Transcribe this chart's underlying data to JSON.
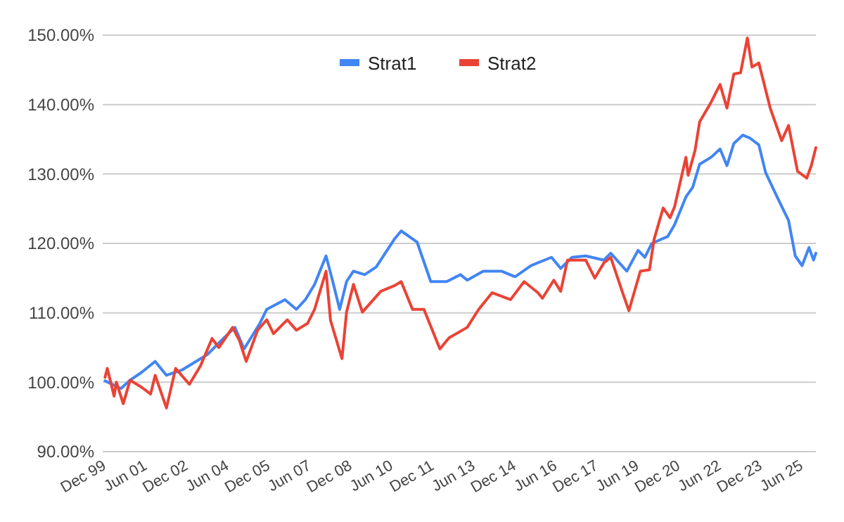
{
  "chart_data": {
    "type": "line",
    "legend": "top",
    "grid": "y",
    "line_style": "solid",
    "marker": "none",
    "xlim": [
      "1999-12",
      "2026-01"
    ],
    "xticks": [
      {
        "value": "1999-12",
        "label": "Dec 99"
      },
      {
        "value": "2001-06",
        "label": "Jun 01"
      },
      {
        "value": "2002-12",
        "label": "Dec 02"
      },
      {
        "value": "2004-06",
        "label": "Jun 04"
      },
      {
        "value": "2005-12",
        "label": "Dec 05"
      },
      {
        "value": "2007-06",
        "label": "Jun 07"
      },
      {
        "value": "2008-12",
        "label": "Dec 08"
      },
      {
        "value": "2010-06",
        "label": "Jun 10"
      },
      {
        "value": "2011-12",
        "label": "Dec 11"
      },
      {
        "value": "2013-06",
        "label": "Jun 13"
      },
      {
        "value": "2014-12",
        "label": "Dec 14"
      },
      {
        "value": "2016-06",
        "label": "Jun 16"
      },
      {
        "value": "2017-12",
        "label": "Dec 17"
      },
      {
        "value": "2019-06",
        "label": "Jun 19"
      },
      {
        "value": "2020-12",
        "label": "Dec 20"
      },
      {
        "value": "2022-06",
        "label": "Jun 22"
      },
      {
        "value": "2023-12",
        "label": "Dec 23"
      },
      {
        "value": "2025-06",
        "label": "Jun 25"
      }
    ],
    "ylim": [
      90,
      150
    ],
    "yticks": [
      {
        "value": 90,
        "label": "90.00%"
      },
      {
        "value": 100,
        "label": "100.00%"
      },
      {
        "value": 110,
        "label": "110.00%"
      },
      {
        "value": 120,
        "label": "120.00%"
      },
      {
        "value": 130,
        "label": "130.00%"
      },
      {
        "value": 140,
        "label": "140.00%"
      },
      {
        "value": 150,
        "label": "150.00%"
      }
    ],
    "series": [
      {
        "name": "Strat1",
        "color": "#4285f4",
        "x": [
          "2000-01",
          "2000-08",
          "2000-12",
          "2001-05",
          "2001-11",
          "2002-04",
          "2002-11",
          "2003-05",
          "2003-10",
          "2004-04",
          "2004-10",
          "2005-02",
          "2005-09",
          "2005-12",
          "2006-08",
          "2007-01",
          "2007-05",
          "2007-09",
          "2008-02",
          "2008-05",
          "2008-08",
          "2008-11",
          "2009-02",
          "2009-07",
          "2009-12",
          "2010-08",
          "2010-11",
          "2011-06",
          "2011-12",
          "2012-07",
          "2013-01",
          "2013-04",
          "2013-11",
          "2014-07",
          "2015-01",
          "2015-08",
          "2016-05",
          "2016-09",
          "2017-02",
          "2017-08",
          "2018-04",
          "2018-07",
          "2019-02",
          "2019-07",
          "2019-10",
          "2020-01",
          "2020-08",
          "2020-11",
          "2021-04",
          "2021-07",
          "2021-10",
          "2022-03",
          "2022-07",
          "2022-10",
          "2023-01",
          "2023-05",
          "2023-08",
          "2023-12",
          "2024-03",
          "2024-08",
          "2025-01",
          "2025-04",
          "2025-07",
          "2025-10",
          "2025-12",
          "2026-01"
        ],
        "values": [
          100.2,
          99.1,
          100.3,
          101.4,
          103,
          101,
          101.8,
          103,
          104,
          106,
          107.9,
          104.8,
          108.5,
          110.5,
          111.9,
          110.5,
          111.9,
          114.1,
          118.2,
          114.5,
          110.5,
          114.5,
          116,
          115.5,
          116.6,
          120.6,
          121.8,
          120.2,
          114.5,
          114.5,
          115.5,
          114.7,
          116,
          116,
          115.2,
          116.8,
          118,
          116.4,
          118,
          118.2,
          117.6,
          118.6,
          116,
          119,
          118,
          120,
          121,
          122.7,
          126.7,
          128.1,
          131.4,
          132.4,
          133.6,
          131.2,
          134.4,
          135.6,
          135.2,
          134.2,
          130.2,
          126.7,
          123.3,
          118.2,
          116.8,
          119.4,
          117.6,
          118.6
        ]
      },
      {
        "name": "Strat2",
        "color": "#ea4335",
        "x": [
          "2000-01",
          "2000-02",
          "2000-05",
          "2000-06",
          "2000-09",
          "2000-12",
          "2001-05",
          "2001-09",
          "2001-11",
          "2002-04",
          "2002-08",
          "2003-02",
          "2003-07",
          "2003-12",
          "2004-03",
          "2004-09",
          "2004-12",
          "2005-03",
          "2005-08",
          "2005-12",
          "2006-03",
          "2006-09",
          "2007-01",
          "2007-06",
          "2007-09",
          "2008-02",
          "2008-04",
          "2008-09",
          "2008-11",
          "2009-02",
          "2009-06",
          "2010-02",
          "2010-08",
          "2010-11",
          "2011-04",
          "2011-09",
          "2012-04",
          "2012-08",
          "2013-04",
          "2013-09",
          "2014-03",
          "2014-11",
          "2015-05",
          "2015-11",
          "2016-01",
          "2016-06",
          "2016-09",
          "2016-12",
          "2017-08",
          "2017-12",
          "2018-04",
          "2018-07",
          "2018-12",
          "2019-03",
          "2019-08",
          "2019-12",
          "2020-02",
          "2020-06",
          "2020-09",
          "2020-11",
          "2021-04",
          "2021-05",
          "2021-08",
          "2021-10",
          "2022-03",
          "2022-07",
          "2022-10",
          "2023-01",
          "2023-04",
          "2023-07",
          "2023-09",
          "2023-12",
          "2024-05",
          "2024-10",
          "2025-01",
          "2025-05",
          "2025-09",
          "2025-11",
          "2026-01"
        ],
        "values": [
          100.7,
          102,
          98,
          100,
          96.9,
          100.3,
          99.3,
          98.3,
          101,
          96.3,
          102,
          99.7,
          102.4,
          106.3,
          105,
          107.9,
          106,
          103,
          107.5,
          109,
          107,
          109,
          107.5,
          108.5,
          110.5,
          116,
          108.9,
          103.4,
          110.1,
          114.1,
          110.1,
          113.1,
          113.9,
          114.5,
          110.5,
          110.5,
          104.8,
          106.4,
          107.9,
          110.5,
          112.9,
          111.9,
          114.5,
          112.9,
          112.1,
          114.7,
          113.1,
          117.6,
          117.6,
          115,
          117.2,
          118,
          113.1,
          110.3,
          116,
          116.2,
          120.6,
          125.1,
          123.7,
          125.3,
          132.4,
          129.8,
          133.4,
          137.5,
          140.3,
          142.9,
          139.5,
          144.4,
          144.6,
          149.6,
          145.4,
          146,
          139.5,
          134.8,
          137,
          130.4,
          129.4,
          131.2,
          133.8
        ]
      }
    ]
  }
}
